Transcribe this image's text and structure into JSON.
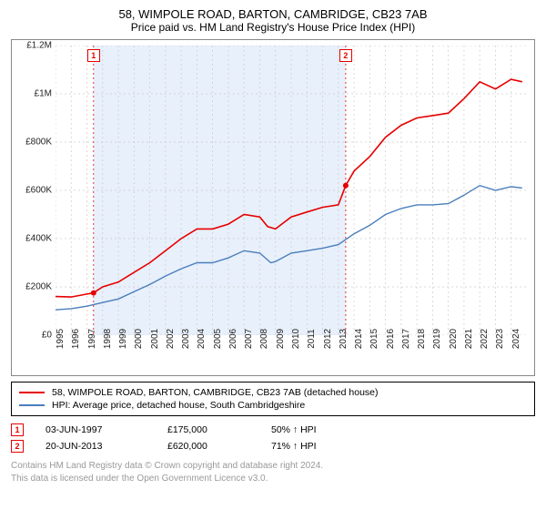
{
  "title": "58, WIMPOLE ROAD, BARTON, CAMBRIDGE, CB23 7AB",
  "subtitle": "Price paid vs. HM Land Registry's House Price Index (HPI)",
  "chart": {
    "type": "line",
    "background_color": "#ffffff",
    "border_color": "#888888",
    "grid_color": "#cccccc",
    "grid_dash": "2,3",
    "highlight_band_color": "#e8f0fb",
    "highlight_band_xmin": 1997.42,
    "highlight_band_xmax": 2013.47,
    "x": {
      "min": 1995,
      "max": 2025,
      "ticks": [
        1995,
        1996,
        1997,
        1998,
        1999,
        2000,
        2001,
        2002,
        2003,
        2004,
        2005,
        2006,
        2007,
        2008,
        2009,
        2010,
        2011,
        2012,
        2013,
        2014,
        2015,
        2016,
        2017,
        2018,
        2019,
        2020,
        2021,
        2022,
        2023,
        2024
      ],
      "label_rotation": -90,
      "fontsize": 10
    },
    "y": {
      "min": 0,
      "max": 1200000,
      "ticks": [
        0,
        200000,
        400000,
        600000,
        800000,
        1000000,
        1200000
      ],
      "tick_labels": [
        "£0",
        "£200K",
        "£400K",
        "£600K",
        "£800K",
        "£1M",
        "£1.2M"
      ],
      "fontsize": 10
    },
    "series": [
      {
        "name": "58, WIMPOLE ROAD, BARTON, CAMBRIDGE, CB23 7AB (detached house)",
        "color": "#e60000",
        "line_width": 1.6,
        "points": [
          [
            1995,
            160000
          ],
          [
            1996,
            158000
          ],
          [
            1997,
            170000
          ],
          [
            1997.42,
            175000
          ],
          [
            1998,
            200000
          ],
          [
            1999,
            220000
          ],
          [
            2000,
            260000
          ],
          [
            2001,
            300000
          ],
          [
            2002,
            350000
          ],
          [
            2003,
            400000
          ],
          [
            2004,
            440000
          ],
          [
            2005,
            440000
          ],
          [
            2006,
            460000
          ],
          [
            2007,
            500000
          ],
          [
            2008,
            490000
          ],
          [
            2008.5,
            450000
          ],
          [
            2009,
            440000
          ],
          [
            2010,
            490000
          ],
          [
            2011,
            510000
          ],
          [
            2012,
            530000
          ],
          [
            2013,
            540000
          ],
          [
            2013.47,
            620000
          ],
          [
            2014,
            680000
          ],
          [
            2015,
            740000
          ],
          [
            2016,
            820000
          ],
          [
            2017,
            870000
          ],
          [
            2018,
            900000
          ],
          [
            2019,
            910000
          ],
          [
            2020,
            920000
          ],
          [
            2021,
            980000
          ],
          [
            2022,
            1050000
          ],
          [
            2023,
            1020000
          ],
          [
            2024,
            1060000
          ],
          [
            2024.7,
            1050000
          ]
        ]
      },
      {
        "name": "HPI: Average price, detached house, South Cambridgeshire",
        "color": "#4a7ebb",
        "line_width": 1.4,
        "points": [
          [
            1995,
            105000
          ],
          [
            1996,
            110000
          ],
          [
            1997,
            120000
          ],
          [
            1998,
            135000
          ],
          [
            1999,
            150000
          ],
          [
            2000,
            180000
          ],
          [
            2001,
            210000
          ],
          [
            2002,
            245000
          ],
          [
            2003,
            275000
          ],
          [
            2004,
            300000
          ],
          [
            2005,
            300000
          ],
          [
            2006,
            320000
          ],
          [
            2007,
            350000
          ],
          [
            2008,
            340000
          ],
          [
            2008.7,
            300000
          ],
          [
            2009,
            305000
          ],
          [
            2010,
            340000
          ],
          [
            2011,
            350000
          ],
          [
            2012,
            360000
          ],
          [
            2013,
            375000
          ],
          [
            2014,
            420000
          ],
          [
            2015,
            455000
          ],
          [
            2016,
            500000
          ],
          [
            2017,
            525000
          ],
          [
            2018,
            540000
          ],
          [
            2019,
            540000
          ],
          [
            2020,
            545000
          ],
          [
            2021,
            580000
          ],
          [
            2022,
            620000
          ],
          [
            2023,
            600000
          ],
          [
            2024,
            615000
          ],
          [
            2024.7,
            610000
          ]
        ]
      }
    ],
    "sale_markers": [
      {
        "n": "1",
        "x": 1997.42,
        "y": 175000,
        "color": "#e60000"
      },
      {
        "n": "2",
        "x": 2013.47,
        "y": 620000,
        "color": "#e60000"
      }
    ],
    "sale_dot_radius": 3,
    "marker_label_offset_y": -28
  },
  "legend": {
    "items": [
      {
        "color": "#e60000",
        "label": "58, WIMPOLE ROAD, BARTON, CAMBRIDGE, CB23 7AB (detached house)"
      },
      {
        "color": "#4a7ebb",
        "label": "HPI: Average price, detached house, South Cambridgeshire"
      }
    ]
  },
  "sales": [
    {
      "n": "1",
      "color": "#e60000",
      "date": "03-JUN-1997",
      "price": "£175,000",
      "delta": "50% ↑ HPI"
    },
    {
      "n": "2",
      "color": "#e60000",
      "date": "20-JUN-2013",
      "price": "£620,000",
      "delta": "71% ↑ HPI"
    }
  ],
  "footer": {
    "line1": "Contains HM Land Registry data © Crown copyright and database right 2024.",
    "line2": "This data is licensed under the Open Government Licence v3.0."
  }
}
